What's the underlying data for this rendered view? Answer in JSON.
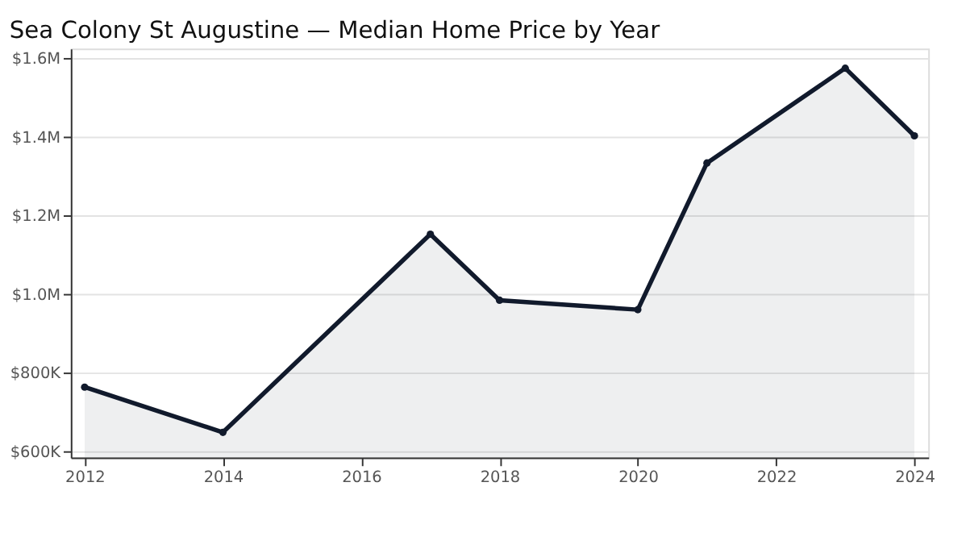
{
  "chart_data": {
    "type": "area",
    "title": "Sea Colony St Augustine — Median Home Price by Year",
    "x": [
      2012,
      2014,
      2017,
      2018,
      2020,
      2021,
      2023,
      2024
    ],
    "series": [
      {
        "color": "#111a2c",
        "values": [
          764000,
          649000,
          1153000,
          985000,
          961000,
          1334000,
          1575000,
          1403000
        ]
      }
    ],
    "xlim": [
      2011.8,
      2024.2
    ],
    "xticks": [
      2012,
      2014,
      2016,
      2018,
      2020,
      2022,
      2024
    ],
    "ylim": [
      585000,
      1625000
    ],
    "yticks": [
      {
        "value": 600000,
        "label": "$600K"
      },
      {
        "value": 800000,
        "label": "$800K"
      },
      {
        "value": 1000000,
        "label": "$1.0M"
      },
      {
        "value": 1200000,
        "label": "$1.2M"
      },
      {
        "value": 1400000,
        "label": "$1.4M"
      },
      {
        "value": 1600000,
        "label": "$1.6M"
      }
    ],
    "grid": "y",
    "marker": "circle",
    "line_style": "solid"
  }
}
